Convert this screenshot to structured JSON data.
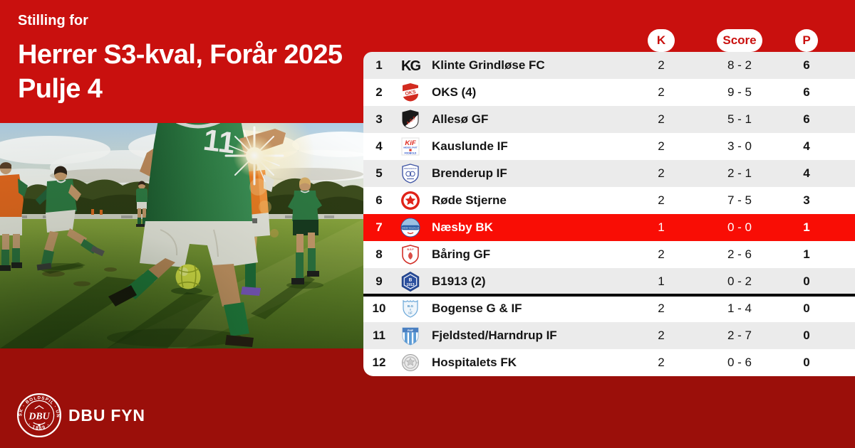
{
  "header": {
    "eyebrow": "Stilling for",
    "title_line1": "Herrer S3-kval, Forår 2025",
    "title_line2": "Pulje 4"
  },
  "photo": {
    "alt": "Amateur football match on a sunlit grass pitch, players in green kits and orange bibs chasing the ball",
    "jersey_number": "11"
  },
  "chart_data": {
    "type": "table",
    "title": "Stilling for Herrer S3-kval, Forår 2025, Pulje 4",
    "columns": {
      "matches": "K",
      "score": "Score",
      "points": "P"
    },
    "rows": [
      {
        "rank": "1",
        "club": "Klinte Grindløse FC",
        "logo": "klinte-grindlose-fc",
        "matches": "2",
        "score": "8 - 2",
        "points": "6",
        "highlighted": false
      },
      {
        "rank": "2",
        "club": "OKS (4)",
        "logo": "oks",
        "matches": "2",
        "score": "9 - 5",
        "points": "6",
        "highlighted": false
      },
      {
        "rank": "3",
        "club": "Allesø GF",
        "logo": "alleso-gf",
        "matches": "2",
        "score": "5 - 1",
        "points": "6",
        "highlighted": false
      },
      {
        "rank": "4",
        "club": "Kauslunde IF",
        "logo": "kauslunde-if",
        "matches": "2",
        "score": "3 - 0",
        "points": "4",
        "highlighted": false
      },
      {
        "rank": "5",
        "club": "Brenderup IF",
        "logo": "brenderup-if",
        "matches": "2",
        "score": "2 - 1",
        "points": "4",
        "highlighted": false
      },
      {
        "rank": "6",
        "club": "Røde Stjerne",
        "logo": "rode-stjerne",
        "matches": "2",
        "score": "7 - 5",
        "points": "3",
        "highlighted": false
      },
      {
        "rank": "7",
        "club": "Næsby BK",
        "logo": "naesby-bk",
        "matches": "1",
        "score": "0 - 0",
        "points": "1",
        "highlighted": true
      },
      {
        "rank": "8",
        "club": "Båring GF",
        "logo": "baring-gf",
        "matches": "2",
        "score": "2 - 6",
        "points": "1",
        "highlighted": false
      },
      {
        "rank": "9",
        "club": "B1913 (2)",
        "logo": "b1913",
        "matches": "1",
        "score": "0 - 2",
        "points": "0",
        "highlighted": false,
        "separator_after": true
      },
      {
        "rank": "10",
        "club": "Bogense G & IF",
        "logo": "bogense-g-if",
        "matches": "2",
        "score": "1 - 4",
        "points": "0",
        "highlighted": false
      },
      {
        "rank": "11",
        "club": "Fjeldsted/Harndrup IF",
        "logo": "fjeldsted-harndrup-if",
        "matches": "2",
        "score": "2 - 7",
        "points": "0",
        "highlighted": false
      },
      {
        "rank": "12",
        "club": "Hospitalets FK",
        "logo": "hospitalets-fk",
        "matches": "2",
        "score": "0 - 6",
        "points": "0",
        "highlighted": false
      }
    ]
  },
  "footer": {
    "brand": "DBU FYN",
    "seal": {
      "monogram": "DBU",
      "organization": "DANSK · BOLDSPIL · UNION",
      "year": "· 1889 ·"
    }
  },
  "colors": {
    "brand_red": "#c9100e",
    "footer_red": "#9b0f0a",
    "highlight_red": "#f90d05",
    "row_stripe": "#ebebeb",
    "relegation": "#000000"
  }
}
